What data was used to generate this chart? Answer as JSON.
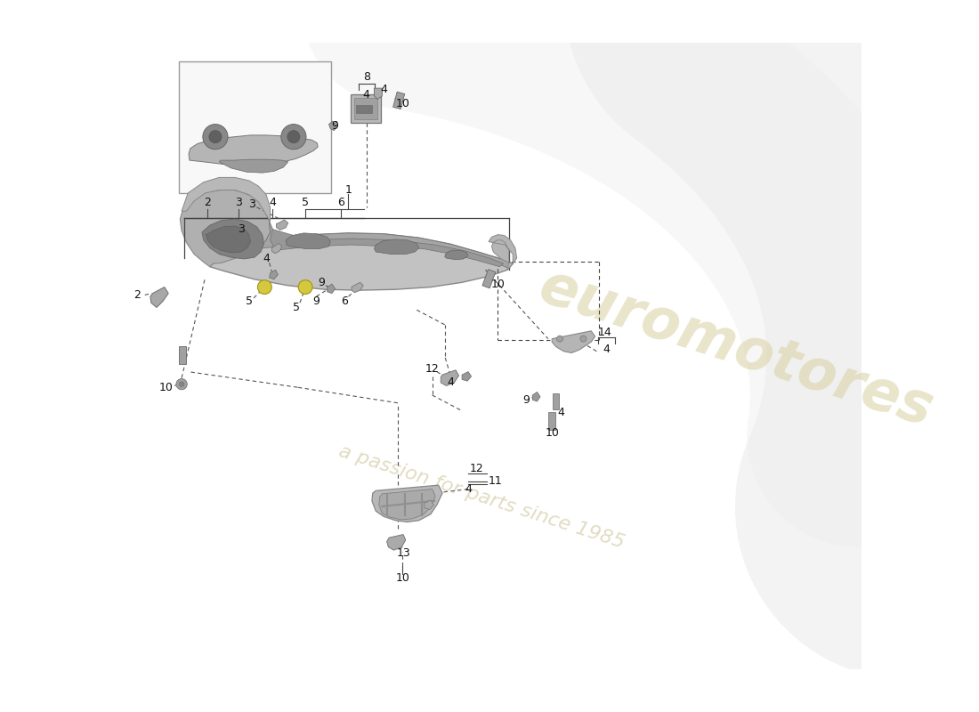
{
  "bg_color": "#ffffff",
  "watermark_color1": "#d8d0a0",
  "watermark_color2": "#c8c090",
  "watermark_alpha": 0.55,
  "line_color": "#444444",
  "label_color": "#111111",
  "part_color_light": "#c0c0c0",
  "part_color_mid": "#a8a8a8",
  "part_color_dark": "#888888",
  "part_color_darker": "#707070",
  "yellow_part": "#d4c840",
  "swoosh_color": "#e0e0e0",
  "figsize": [
    11.0,
    8.0
  ],
  "dpi": 100
}
